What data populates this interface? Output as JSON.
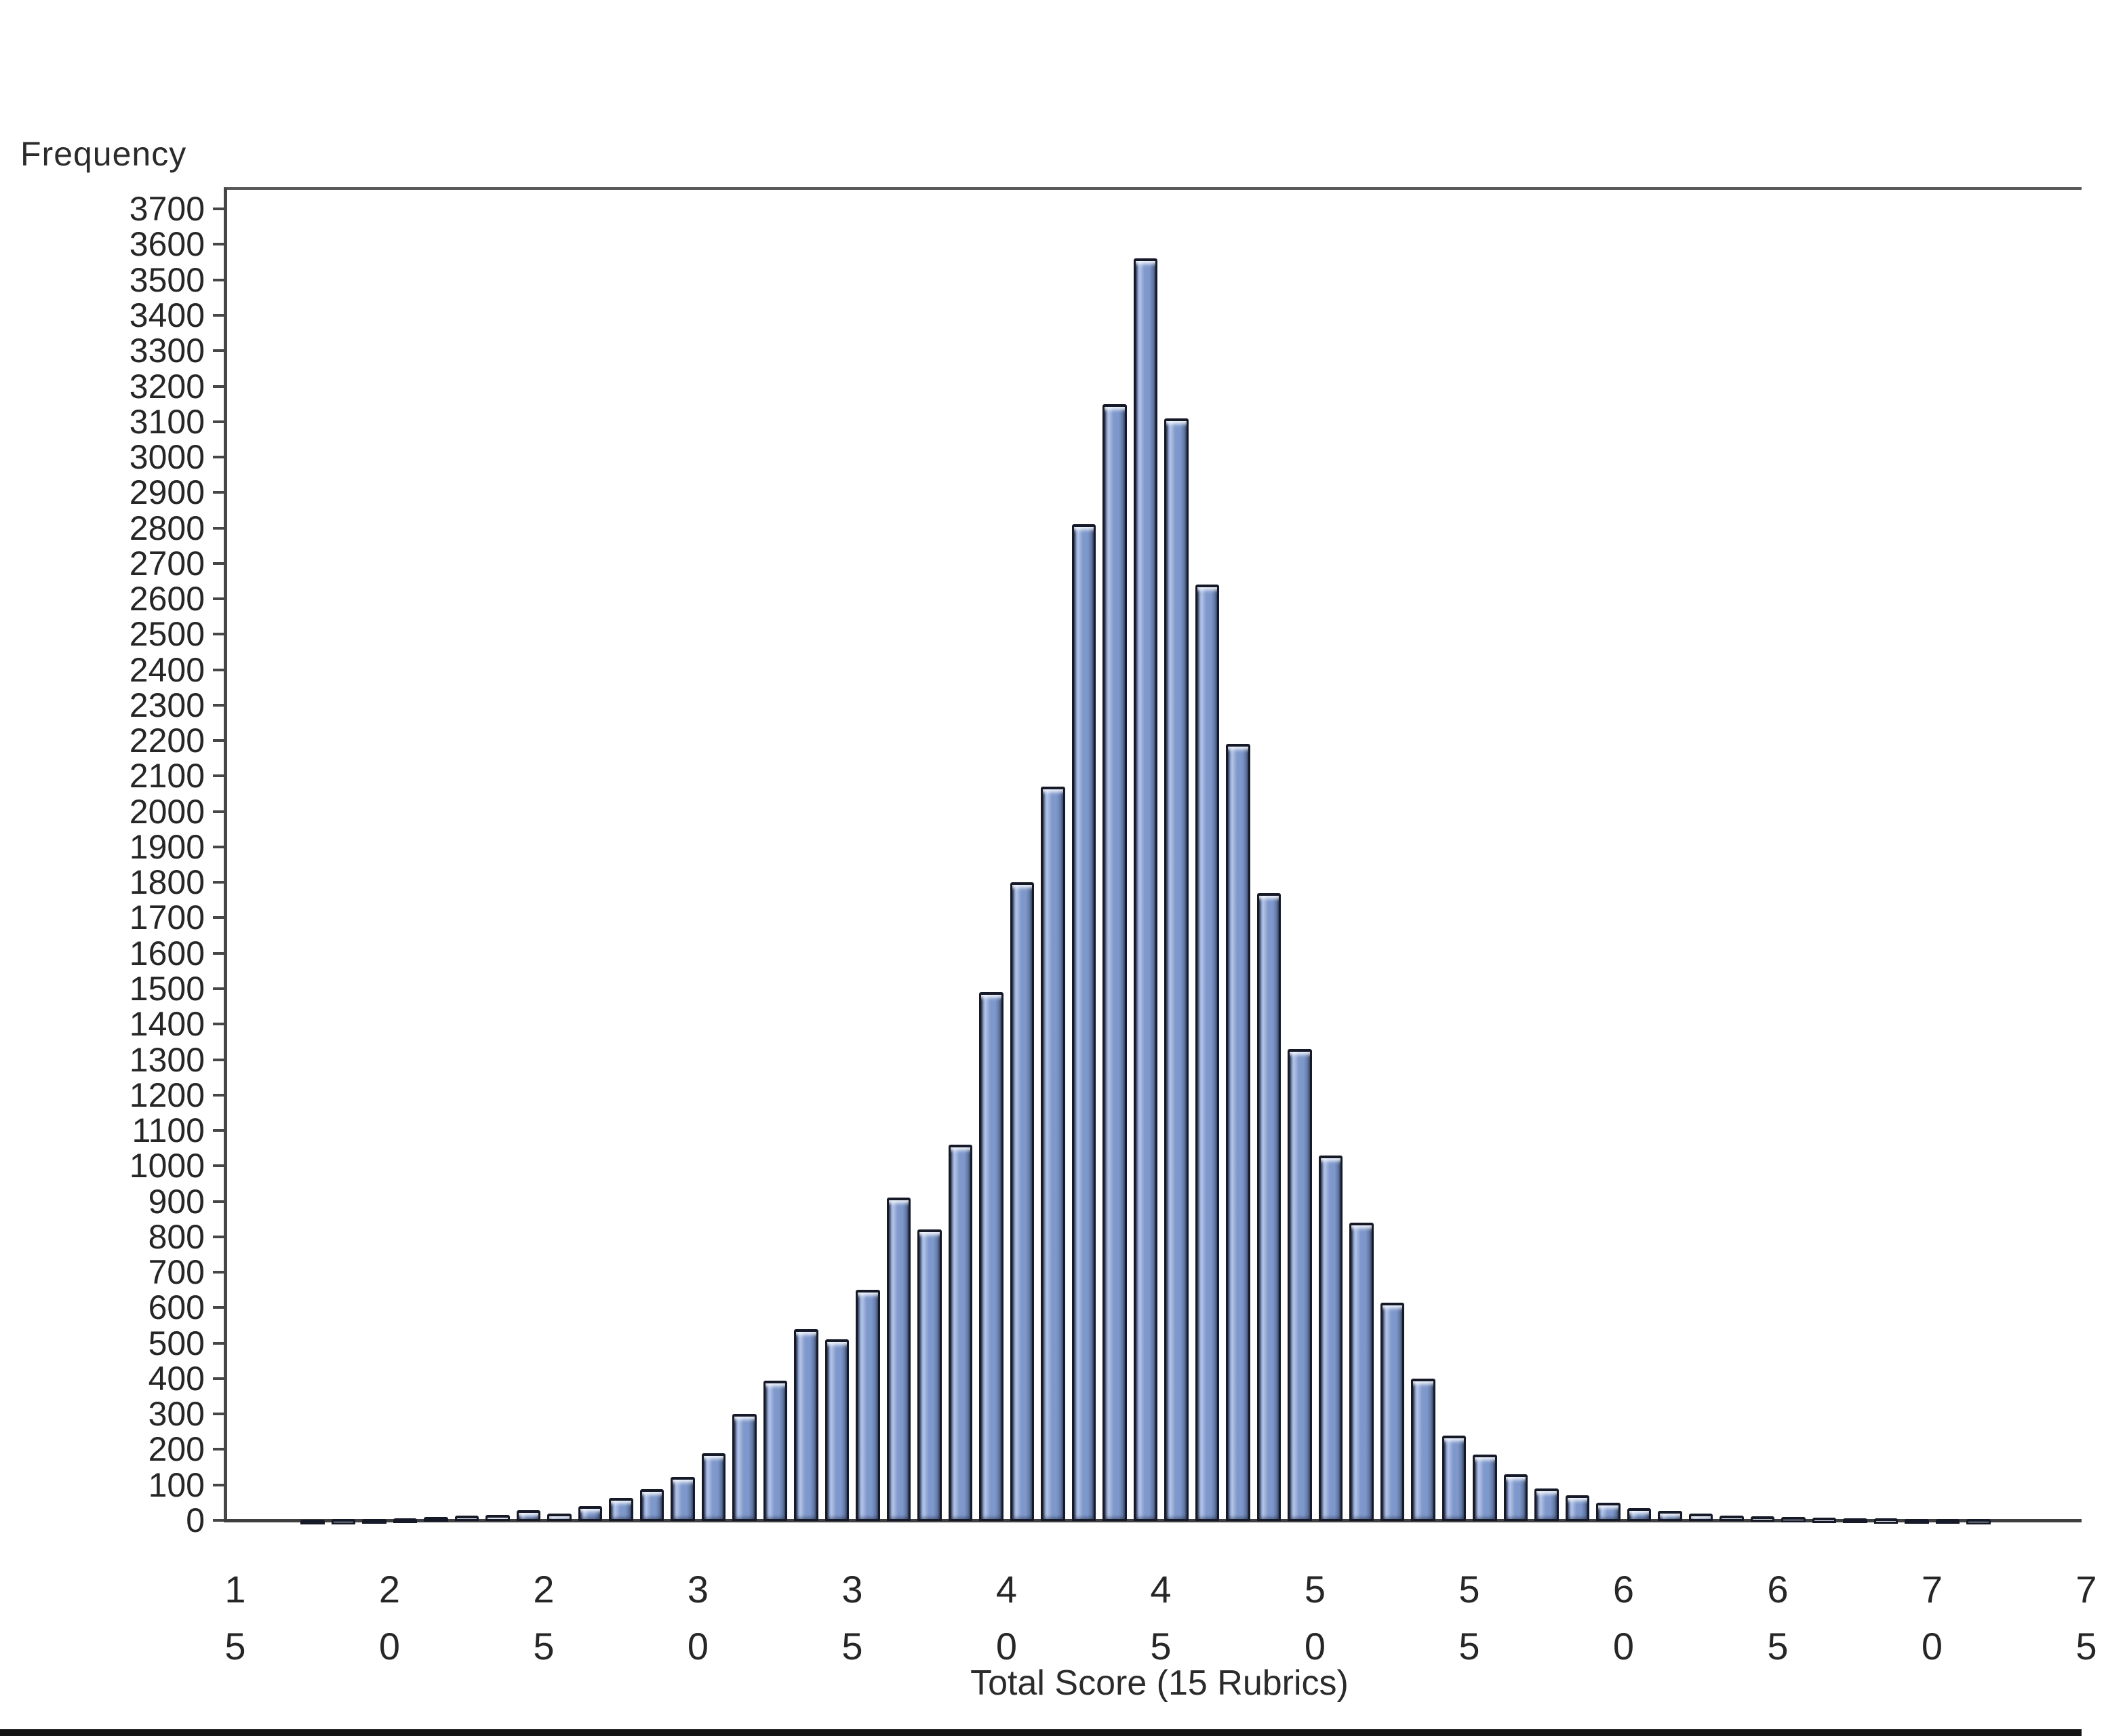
{
  "chart_data": {
    "type": "bar",
    "variant": "histogram",
    "title": "",
    "xlabel": "Total Score (15 Rubrics)",
    "ylabel": "Frequency",
    "grid": false,
    "legend_position": "none",
    "x_tick_labels": [
      "15",
      "20",
      "25",
      "30",
      "35",
      "40",
      "45",
      "50",
      "55",
      "60",
      "65",
      "70",
      "75"
    ],
    "y_axis": {
      "min": 0,
      "max": 3700,
      "step": 100
    },
    "y_tick_labels": [
      0,
      100,
      200,
      300,
      400,
      500,
      600,
      700,
      800,
      900,
      1000,
      1100,
      1200,
      1300,
      1400,
      1500,
      1600,
      1700,
      1800,
      1900,
      2000,
      2100,
      2200,
      2300,
      2400,
      2500,
      2600,
      2700,
      2800,
      2900,
      3000,
      3100,
      3200,
      3300,
      3400,
      3500,
      3600,
      3700
    ],
    "scores": [
      17,
      18,
      19,
      20,
      21,
      22,
      23,
      24,
      25,
      26,
      27,
      28,
      29,
      30,
      31,
      32,
      33,
      34,
      35,
      36,
      37,
      38,
      39,
      40,
      41,
      42,
      43,
      44,
      45,
      46,
      47,
      48,
      49,
      50,
      51,
      52,
      53,
      54,
      55,
      56,
      57,
      58,
      59,
      60,
      61,
      62,
      63,
      64,
      65,
      66,
      67,
      68,
      69,
      70,
      71
    ],
    "counts": [
      2,
      3,
      4,
      6,
      10,
      13,
      16,
      28,
      20,
      40,
      64,
      88,
      122,
      190,
      300,
      395,
      540,
      510,
      650,
      910,
      820,
      1060,
      1490,
      1800,
      2070,
      2810,
      3150,
      3560,
      3110,
      2640,
      2190,
      1770,
      1330,
      1030,
      840,
      615,
      400,
      240,
      185,
      130,
      90,
      70,
      50,
      35,
      27,
      20,
      14,
      11,
      9,
      7,
      6,
      5,
      4,
      4,
      3
    ],
    "bar_fill_color": "#7d97cb",
    "bar_outline_color": "#161a28",
    "axis_color": "#474747",
    "background_color": "#ffffff"
  },
  "page": {
    "bottom_bar_color": "#141414"
  }
}
